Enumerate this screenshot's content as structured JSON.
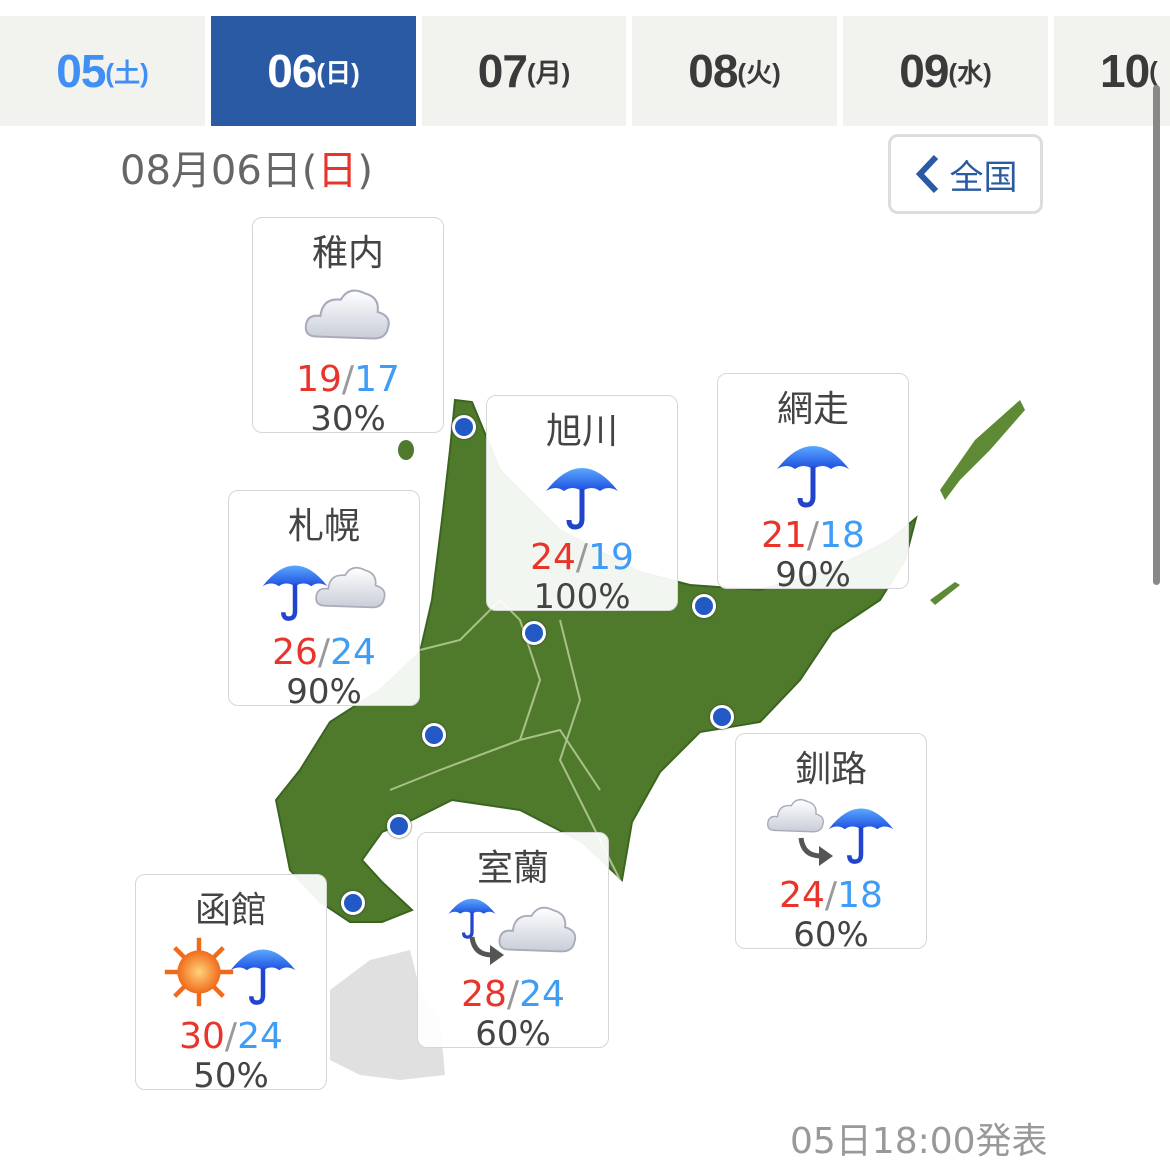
{
  "tabs": [
    {
      "day": "05",
      "weekday": "(土)",
      "type": "sat"
    },
    {
      "day": "06",
      "weekday": "(日)",
      "type": "active"
    },
    {
      "day": "07",
      "weekday": "(月)",
      "type": ""
    },
    {
      "day": "08",
      "weekday": "(火)",
      "type": ""
    },
    {
      "day": "09",
      "weekday": "(水)",
      "type": ""
    },
    {
      "day": "10",
      "weekday": "(",
      "type": ""
    }
  ],
  "date_heading": {
    "prefix": "08月06日(",
    "weekday": "日",
    "suffix": ")"
  },
  "back_button": {
    "label": "全国",
    "icon": "chevron-left-icon"
  },
  "colors": {
    "active_tab": "#2a5aa3",
    "high": "#e8342b",
    "low": "#3f9df5",
    "saturday": "#3f8ff5"
  },
  "cities": [
    {
      "name": "稚内",
      "icons": [
        "cloud"
      ],
      "high": "19",
      "low": "17",
      "pop": "30%"
    },
    {
      "name": "旭川",
      "icons": [
        "rain"
      ],
      "high": "24",
      "low": "19",
      "pop": "100%"
    },
    {
      "name": "網走",
      "icons": [
        "rain"
      ],
      "high": "21",
      "low": "18",
      "pop": "90%"
    },
    {
      "name": "札幌",
      "icons": [
        "rain",
        "cloud"
      ],
      "high": "26",
      "low": "24",
      "pop": "90%"
    },
    {
      "name": "釧路",
      "icons": [
        "cloud",
        "arrow",
        "rain"
      ],
      "high": "24",
      "low": "18",
      "pop": "60%"
    },
    {
      "name": "室蘭",
      "icons": [
        "rain",
        "arrow",
        "cloud"
      ],
      "high": "28",
      "low": "24",
      "pop": "60%"
    },
    {
      "name": "函館",
      "icons": [
        "sun",
        "rain"
      ],
      "high": "30",
      "low": "24",
      "pop": "50%"
    }
  ],
  "issued": "05日18:00発表"
}
